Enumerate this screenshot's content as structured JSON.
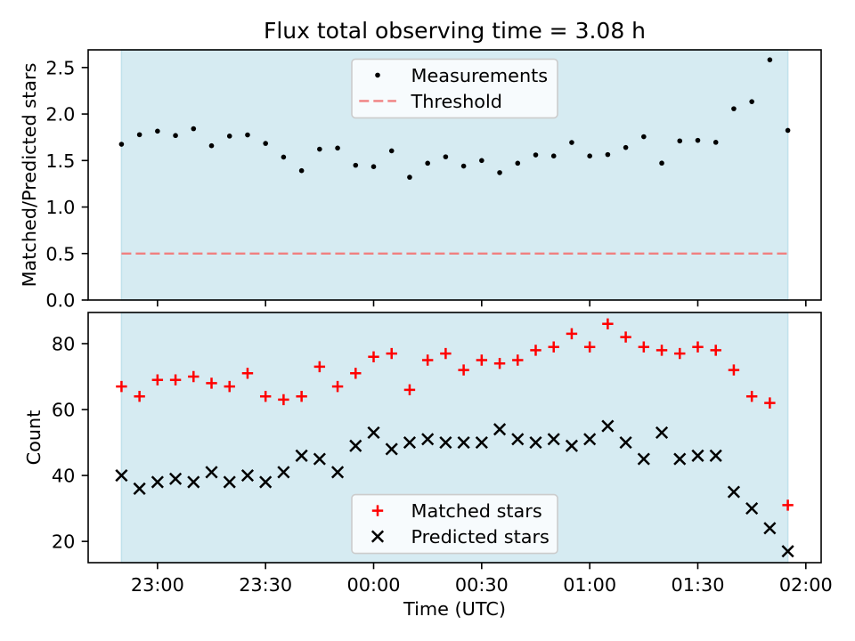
{
  "chart_data": [
    {
      "type": "scatter",
      "title": "Flux total observing time = 3.08 h",
      "ylabel": "Matched/Predicted stars",
      "x": [
        "22:50",
        "22:55",
        "23:00",
        "23:05",
        "23:10",
        "23:15",
        "23:20",
        "23:25",
        "23:30",
        "23:35",
        "23:40",
        "23:45",
        "23:50",
        "23:55",
        "00:00",
        "00:05",
        "00:10",
        "00:15",
        "00:20",
        "00:25",
        "00:30",
        "00:35",
        "00:40",
        "00:45",
        "00:50",
        "00:55",
        "01:00",
        "01:05",
        "01:10",
        "01:15",
        "01:20",
        "01:25",
        "01:30",
        "01:35",
        "01:40",
        "01:45",
        "01:50",
        "01:55"
      ],
      "series": [
        {
          "name": "Measurements",
          "marker": "dot",
          "color": "#000000",
          "values": [
            1.675,
            1.778,
            1.816,
            1.769,
            1.842,
            1.659,
            1.763,
            1.775,
            1.684,
            1.537,
            1.391,
            1.622,
            1.634,
            1.449,
            1.434,
            1.604,
            1.32,
            1.471,
            1.54,
            1.44,
            1.5,
            1.37,
            1.471,
            1.56,
            1.549,
            1.694,
            1.549,
            1.564,
            1.64,
            1.756,
            1.472,
            1.711,
            1.717,
            1.696,
            2.057,
            2.133,
            2.583,
            1.824
          ]
        },
        {
          "name": "Threshold",
          "kind": "hline",
          "style": "dashed",
          "color": "#f08080",
          "y": 0.5,
          "x_range": [
            "22:50",
            "01:55"
          ]
        }
      ],
      "xlim": [
        "22:40:45",
        "02:04:15"
      ],
      "ylim": [
        0,
        2.69
      ],
      "yticks": [
        "0.0",
        "0.5",
        "1.0",
        "1.5",
        "2.0",
        "2.5"
      ],
      "observing_window": [
        "22:50",
        "01:55"
      ],
      "window_color": "#d6ebf2",
      "window_edge_color": "#c1e1ec",
      "legend": "upper center",
      "grid": false
    },
    {
      "type": "scatter",
      "xlabel": "Time (UTC)",
      "ylabel": "Count",
      "x": [
        "22:50",
        "22:55",
        "23:00",
        "23:05",
        "23:10",
        "23:15",
        "23:20",
        "23:25",
        "23:30",
        "23:35",
        "23:40",
        "23:45",
        "23:50",
        "23:55",
        "00:00",
        "00:05",
        "00:10",
        "00:15",
        "00:20",
        "00:25",
        "00:30",
        "00:35",
        "00:40",
        "00:45",
        "00:50",
        "00:55",
        "01:00",
        "01:05",
        "01:10",
        "01:15",
        "01:20",
        "01:25",
        "01:30",
        "01:35",
        "01:40",
        "01:45",
        "01:50",
        "01:55"
      ],
      "series": [
        {
          "name": "Matched stars",
          "marker": "plus",
          "color": "#ff0000",
          "values": [
            67,
            64,
            69,
            69,
            70,
            68,
            67,
            71,
            64,
            63,
            64,
            73,
            67,
            71,
            76,
            77,
            66,
            75,
            77,
            72,
            75,
            74,
            75,
            78,
            79,
            83,
            79,
            86,
            82,
            79,
            78,
            77,
            79,
            78,
            72,
            64,
            62,
            31
          ]
        },
        {
          "name": "Predicted stars",
          "marker": "cross",
          "color": "#000000",
          "values": [
            40,
            36,
            38,
            39,
            38,
            41,
            38,
            40,
            38,
            41,
            46,
            45,
            41,
            49,
            53,
            48,
            50,
            51,
            50,
            50,
            50,
            54,
            51,
            50,
            51,
            49,
            51,
            55,
            50,
            45,
            53,
            45,
            46,
            46,
            35,
            30,
            24,
            17
          ]
        }
      ],
      "xlim": [
        "22:40:45",
        "02:04:15"
      ],
      "ylim": [
        13.55,
        89.45
      ],
      "yticks": [
        "20",
        "40",
        "60",
        "80"
      ],
      "xticks": [
        "23:00",
        "23:30",
        "00:00",
        "00:30",
        "01:00",
        "01:30",
        "02:00"
      ],
      "observing_window": [
        "22:50",
        "01:55"
      ],
      "window_color": "#d6ebf2",
      "window_edge_color": "#c1e1ec",
      "legend": "lower center",
      "grid": false
    }
  ]
}
